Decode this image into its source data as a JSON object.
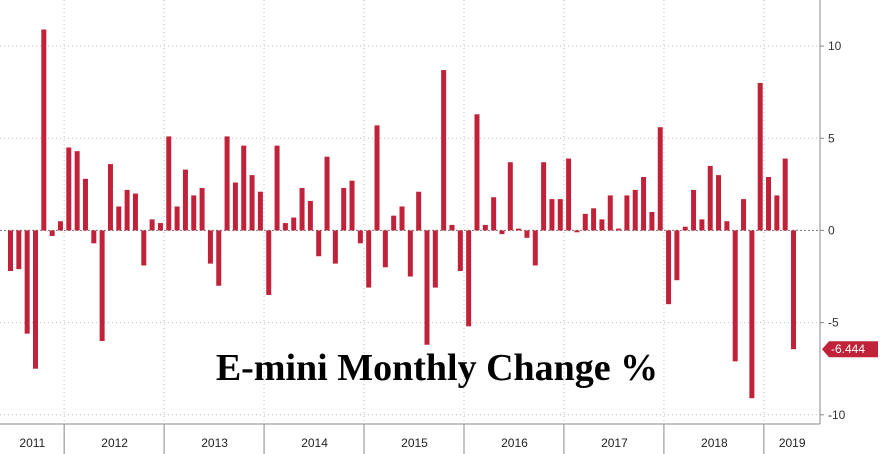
{
  "chart_data": {
    "type": "bar",
    "title": "E-mini Monthly Change %",
    "xlabel": "",
    "ylabel": "",
    "ylim": [
      -10.5,
      12.5
    ],
    "yticks": [
      -10,
      -5,
      0,
      5,
      10
    ],
    "ytick_labels": [
      "-10",
      "-5",
      "0",
      "5",
      "10"
    ],
    "grid": true,
    "bar_color": "#c0223a",
    "last_value": -6.444,
    "last_value_label": "-6.444",
    "years": [
      "2011",
      "2012",
      "2013",
      "2014",
      "2015",
      "2016",
      "2017",
      "2018",
      "2019"
    ],
    "series": [
      {
        "values": [
          -2.2,
          -2.1,
          -5.6,
          -7.5,
          10.9,
          -0.3,
          0.5,
          4.5,
          4.3,
          2.8,
          -0.7,
          -6.0,
          3.6,
          1.3,
          2.2,
          2.0,
          -1.9,
          0.6,
          0.4,
          5.1,
          1.3,
          3.3,
          1.9,
          2.3,
          -1.8,
          -3.0,
          5.1,
          2.6,
          4.6,
          3.0,
          2.1,
          -3.5,
          4.6,
          0.4,
          0.7,
          2.3,
          1.6,
          -1.4,
          4.0,
          -1.8,
          2.3,
          2.7,
          -0.7,
          -3.1,
          5.7,
          -2.0,
          0.8,
          1.3,
          -2.5,
          2.1,
          -6.2,
          -3.1,
          8.7,
          0.3,
          -2.2,
          -5.2,
          6.3,
          0.3,
          1.8,
          -0.2,
          3.7,
          0.1,
          -0.4,
          -1.9,
          3.7,
          1.7,
          1.7,
          3.9,
          -0.1,
          0.9,
          1.2,
          0.6,
          1.9,
          0.1,
          1.9,
          2.2,
          2.9,
          1.0,
          5.6,
          -4.0,
          -2.7,
          0.2,
          2.2,
          0.6,
          3.5,
          3.0,
          0.5,
          -7.1,
          1.7,
          -9.1,
          8.0,
          2.9,
          1.9,
          3.9,
          -6.444
        ]
      }
    ]
  }
}
